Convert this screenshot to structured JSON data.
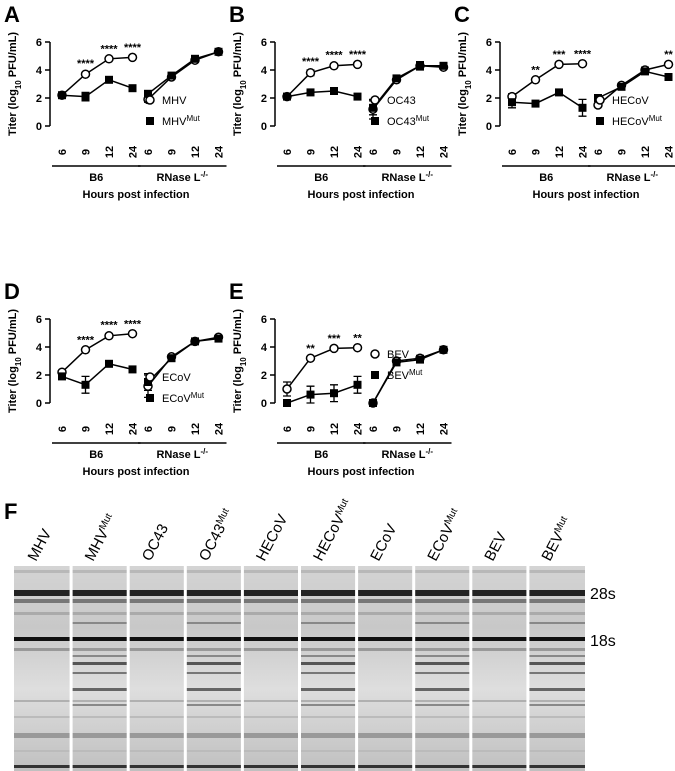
{
  "chart_data": [
    {
      "type": "line",
      "panel": "A",
      "y_label": [
        "Titer (log",
        "10",
        " PFU/mL)"
      ],
      "x_label": "Hours post infection",
      "groups": [
        {
          "label": "B6"
        },
        {
          "label": "RNase L",
          "label_sup": "-/-"
        }
      ],
      "categories": [
        "6",
        "9",
        "12",
        "24",
        "6",
        "9",
        "12",
        "24"
      ],
      "ylim": [
        0,
        6
      ],
      "yticks": [
        0,
        2,
        4,
        6
      ],
      "legend": "lower right",
      "series": [
        {
          "name": "MHV",
          "marker": "open-circle",
          "color": "#000000",
          "values": [
            2.2,
            3.7,
            4.8,
            4.9,
            1.9,
            3.5,
            4.7,
            5.3
          ],
          "errors": [
            0.1,
            0.15,
            0.1,
            0.1,
            0.2,
            0.1,
            0.1,
            0.1
          ]
        },
        {
          "name": "MHV",
          "name_sup": "Mut",
          "marker": "filled-square",
          "color": "#000000",
          "values": [
            2.2,
            2.1,
            3.3,
            2.7,
            2.3,
            3.6,
            4.8,
            5.3
          ],
          "errors": [
            0.15,
            0.3,
            0.1,
            0.1,
            0.2,
            0.1,
            0.1,
            0.1
          ]
        }
      ],
      "annotations": [
        null,
        "****",
        "****",
        "****",
        null,
        null,
        null,
        null
      ]
    },
    {
      "type": "line",
      "panel": "B",
      "y_label": [
        "Titer (log",
        "10",
        " PFU/mL)"
      ],
      "x_label": "Hours post infection",
      "groups": [
        {
          "label": "B6"
        },
        {
          "label": "RNase L",
          "label_sup": "-/-"
        }
      ],
      "categories": [
        "6",
        "9",
        "12",
        "24",
        "6",
        "9",
        "12",
        "24"
      ],
      "ylim": [
        0,
        6
      ],
      "yticks": [
        0,
        2,
        4,
        6
      ],
      "legend": "lower right",
      "series": [
        {
          "name": "OC43",
          "marker": "open-circle",
          "color": "#000000",
          "values": [
            2.1,
            3.8,
            4.3,
            4.4,
            1.2,
            3.3,
            4.3,
            4.2
          ],
          "errors": [
            0.1,
            0.2,
            0.15,
            0.1,
            0.7,
            0.1,
            0.3,
            0.1
          ]
        },
        {
          "name": "OC43",
          "name_sup": "Mut",
          "marker": "filled-square",
          "color": "#000000",
          "values": [
            2.1,
            2.4,
            2.5,
            2.1,
            1.3,
            3.4,
            4.3,
            4.3
          ],
          "errors": [
            0.1,
            0.1,
            0.1,
            0.1,
            0.5,
            0.1,
            0.1,
            0.1
          ]
        }
      ],
      "annotations": [
        null,
        "****",
        "****",
        "****",
        null,
        null,
        null,
        null
      ]
    },
    {
      "type": "line",
      "panel": "C",
      "y_label": [
        "Titer (log",
        "10",
        " PFU/mL)"
      ],
      "x_label": "Hours post infection",
      "groups": [
        {
          "label": "B6"
        },
        {
          "label": "RNase L",
          "label_sup": "-/-"
        }
      ],
      "categories": [
        "6",
        "9",
        "12",
        "24",
        "6",
        "9",
        "12",
        "24"
      ],
      "ylim": [
        0,
        6
      ],
      "yticks": [
        0,
        2,
        4,
        6
      ],
      "legend": "lower right",
      "series": [
        {
          "name": "HECoV",
          "marker": "open-circle",
          "color": "#000000",
          "values": [
            2.1,
            3.3,
            4.4,
            4.45,
            1.5,
            2.9,
            4.0,
            4.4
          ],
          "errors": [
            0.2,
            0.1,
            0.1,
            0.1,
            0.1,
            0.1,
            0.2,
            0.1
          ]
        },
        {
          "name": "HECoV",
          "name_sup": "Mut",
          "marker": "filled-square",
          "color": "#000000",
          "values": [
            1.7,
            1.6,
            2.4,
            1.3,
            2.0,
            2.8,
            3.9,
            3.5
          ],
          "errors": [
            0.4,
            0.1,
            0.1,
            0.6,
            0.1,
            0.1,
            0.1,
            0.1
          ]
        }
      ],
      "annotations": [
        null,
        "**",
        "***",
        "****",
        null,
        null,
        null,
        "**"
      ]
    },
    {
      "type": "line",
      "panel": "D",
      "y_label": [
        "Titer (log",
        "10",
        " PFU/mL)"
      ],
      "x_label": "Hours post infection",
      "groups": [
        {
          "label": "B6"
        },
        {
          "label": "RNase L",
          "label_sup": "-/-"
        }
      ],
      "categories": [
        "6",
        "9",
        "12",
        "24",
        "6",
        "9",
        "12",
        "24"
      ],
      "ylim": [
        0,
        6
      ],
      "yticks": [
        0,
        2,
        4,
        6
      ],
      "legend": "lower right",
      "series": [
        {
          "name": "ECoV",
          "marker": "open-circle",
          "color": "#000000",
          "values": [
            2.2,
            3.8,
            4.8,
            4.95,
            1.2,
            3.3,
            4.4,
            4.7
          ],
          "errors": [
            0.1,
            0.1,
            0.15,
            0.1,
            0.8,
            0.1,
            0.1,
            0.1
          ]
        },
        {
          "name": "ECoV",
          "name_sup": "Mut",
          "marker": "filled-square",
          "color": "#000000",
          "values": [
            1.9,
            1.3,
            2.8,
            2.4,
            1.5,
            3.2,
            4.4,
            4.6
          ],
          "errors": [
            0.1,
            0.6,
            0.1,
            0.1,
            0.6,
            0.1,
            0.1,
            0.1
          ]
        }
      ],
      "annotations": [
        null,
        "****",
        "****",
        "****",
        null,
        null,
        null,
        null
      ]
    },
    {
      "type": "line",
      "panel": "E",
      "y_label": [
        "Titer (log",
        "10",
        " PFU/mL)"
      ],
      "x_label": "Hours post infection",
      "groups": [
        {
          "label": "B6"
        },
        {
          "label": "RNase L",
          "label_sup": "-/-"
        }
      ],
      "categories": [
        "6",
        "9",
        "12",
        "24",
        "6",
        "9",
        "12",
        "24"
      ],
      "ylim": [
        0,
        6
      ],
      "yticks": [
        0,
        2,
        4,
        6
      ],
      "legend": "center",
      "series": [
        {
          "name": "BEV",
          "marker": "open-circle",
          "color": "#000000",
          "values": [
            1.0,
            3.2,
            3.9,
            3.95,
            0,
            3.0,
            3.2,
            3.8
          ],
          "errors": [
            0.5,
            0.1,
            0.1,
            0.1,
            0,
            0.1,
            0.2,
            0.1
          ]
        },
        {
          "name": "BEV",
          "name_sup": "Mut",
          "marker": "filled-square",
          "color": "#000000",
          "values": [
            0,
            0.6,
            0.7,
            1.3,
            0,
            2.9,
            3.1,
            3.8
          ],
          "errors": [
            0,
            0.6,
            0.6,
            0.6,
            0,
            0.1,
            0.1,
            0.1
          ]
        }
      ],
      "annotations": [
        null,
        "**",
        "***",
        "**",
        null,
        null,
        null,
        null
      ]
    }
  ],
  "gel": {
    "panel": "F",
    "lanes": [
      {
        "name": "MHV"
      },
      {
        "name": "MHV",
        "sup": "Mut"
      },
      {
        "name": "OC43"
      },
      {
        "name": "OC43",
        "sup": "Mut"
      },
      {
        "name": "HECoV"
      },
      {
        "name": "HECoV",
        "sup": "Mut"
      },
      {
        "name": "ECoV"
      },
      {
        "name": "ECoV",
        "sup": "Mut"
      },
      {
        "name": "BEV"
      },
      {
        "name": "BEV",
        "sup": "Mut"
      }
    ],
    "markers": [
      "28s",
      "18s"
    ]
  }
}
